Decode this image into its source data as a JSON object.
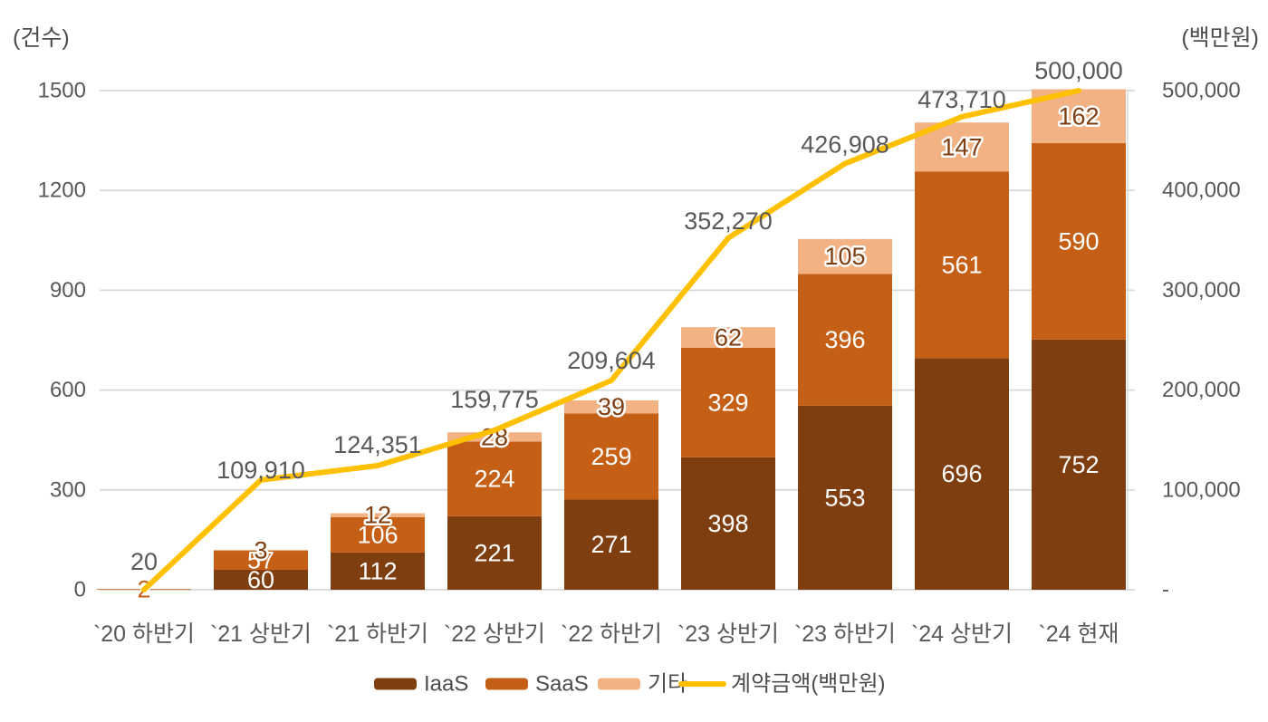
{
  "page": {
    "background": "#FFFFFF"
  },
  "chart_data": {
    "type": "bar+line",
    "title": "",
    "categories": [
      "`20 하반기",
      "`21 상반기",
      "`21 하반기",
      "`22 상반기",
      "`22 하반기",
      "`23 상반기",
      "`23 하반기",
      "`24 상반기",
      "`24 현재"
    ],
    "stacked_series": [
      {
        "name": "IaaS",
        "color": "#7E3E10",
        "label_color": "#FFFFFF",
        "values": [
          0,
          60,
          112,
          221,
          271,
          398,
          553,
          696,
          752
        ]
      },
      {
        "name": "SaaS",
        "color": "#C65F16",
        "label_color": "#FFFFFF",
        "values": [
          2,
          57,
          106,
          224,
          259,
          329,
          396,
          561,
          590
        ]
      },
      {
        "name": "기타",
        "color": "#F2B283",
        "label_color": "#7E3E10",
        "values": [
          0,
          3,
          12,
          28,
          39,
          62,
          105,
          147,
          162
        ]
      }
    ],
    "line_series": {
      "name": "계약금액(백만원)",
      "color": "#FFC000",
      "values": [
        20,
        109910,
        124351,
        159775,
        209604,
        352270,
        426908,
        473710,
        500000
      ],
      "labels": [
        "20",
        "109,910",
        "124,351",
        "159,775",
        "209,604",
        "352,270",
        "426,908",
        "473,710",
        "500,000"
      ],
      "label_dy": [
        -31,
        -11,
        -23,
        -34,
        -22,
        -19,
        -21,
        -19,
        -22
      ]
    },
    "axes": {
      "left": {
        "title": "(건수)",
        "ticks": [
          "1500",
          "1200",
          "900",
          "600",
          "300",
          "0"
        ],
        "max": 1500
      },
      "right": {
        "title": "(백만원)",
        "ticks": [
          "500,000",
          "400,000",
          "300,000",
          "200,000",
          "100,000",
          "-"
        ],
        "max": 500000
      }
    },
    "legend": [
      {
        "label": "IaaS",
        "type": "rect",
        "color": "#7E3E10"
      },
      {
        "label": "SaaS",
        "type": "rect",
        "color": "#C65F16"
      },
      {
        "label": "기타",
        "type": "rect",
        "color": "#F2B283"
      },
      {
        "label": "계약금액(백만원)",
        "type": "line",
        "color": "#FFC000"
      }
    ],
    "colors": {
      "grid": "#D9D9D9",
      "tick_text": "#595959",
      "axis_title_text": "#4D4D4D",
      "line_label_text": "#595959",
      "legend_text": "#4D4D4D"
    }
  }
}
